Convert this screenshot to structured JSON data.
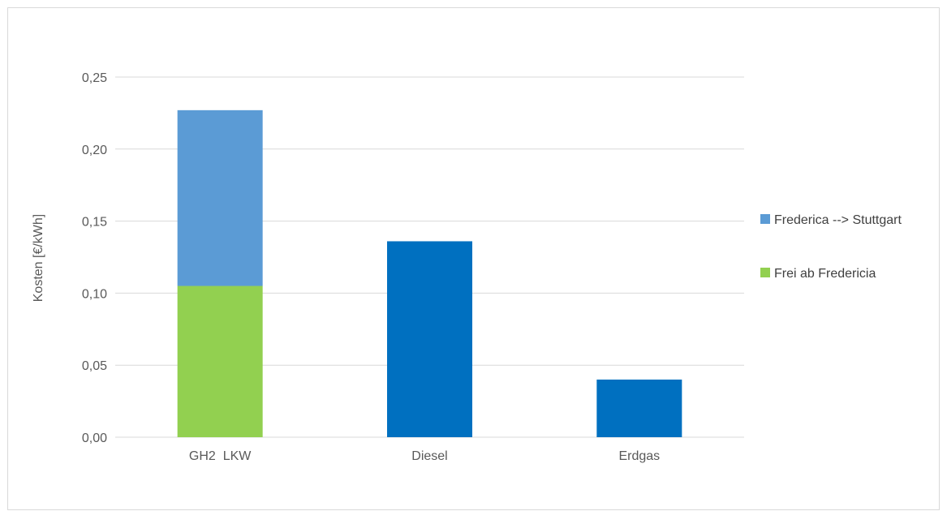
{
  "chart_data": {
    "type": "bar",
    "stacked": true,
    "categories": [
      "GH2  LKW",
      "Diesel",
      "Erdgas"
    ],
    "series": [
      {
        "name": "Frei ab Fredericia",
        "color": "#92d050",
        "values": [
          0.105,
          null,
          null
        ]
      },
      {
        "name": "Frederica --> Stuttgart",
        "color": "#5b9bd5",
        "values": [
          0.122,
          null,
          null
        ]
      },
      {
        "color": "#0070c0",
        "values": [
          null,
          0.136,
          0.04
        ]
      }
    ],
    "legend_series": [
      "Frederica --> Stuttgart",
      "Frei ab Fredericia"
    ],
    "ylabel": "Kosten [€/kWh]",
    "xlabel": "",
    "title": "",
    "ylim": [
      0,
      0.25
    ],
    "yticks": [
      "0,00",
      "0,05",
      "0,10",
      "0,15",
      "0,20",
      "0,25"
    ],
    "ytick_values": [
      0,
      0.05,
      0.1,
      0.15,
      0.2,
      0.25
    ],
    "grid": true,
    "legend_position": "right"
  }
}
